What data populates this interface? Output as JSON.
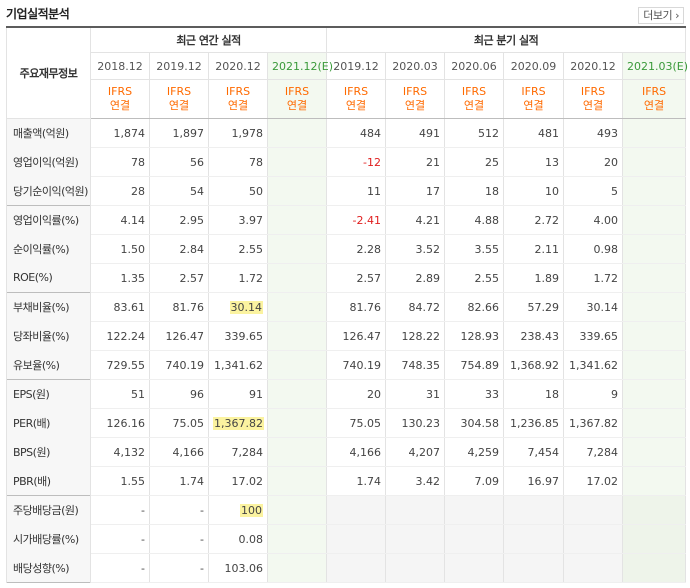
{
  "header": {
    "title": "기업실적분석",
    "more_label": "더보기"
  },
  "table": {
    "corner_label": "주요재무정보",
    "annual_group_label": "최근 연간 실적",
    "quarter_group_label": "최근 분기 실적",
    "annual_dates": [
      "2018.12",
      "2019.12",
      "2020.12",
      "2021.12(E)"
    ],
    "quarter_dates": [
      "2019.12",
      "2020.03",
      "2020.06",
      "2020.09",
      "2020.12",
      "2021.03(E)"
    ],
    "type_top": "IFRS",
    "type_bottom": "연결",
    "rows": [
      {
        "label": "매출액(억원)",
        "annual": [
          "1,874",
          "1,897",
          "1,978",
          ""
        ],
        "quarter": [
          "484",
          "491",
          "512",
          "481",
          "493",
          ""
        ]
      },
      {
        "label": "영업이익(억원)",
        "annual": [
          "78",
          "56",
          "78",
          ""
        ],
        "quarter": [
          "-12",
          "21",
          "25",
          "13",
          "20",
          ""
        ]
      },
      {
        "label": "당기순이익(억원)",
        "annual": [
          "28",
          "54",
          "50",
          ""
        ],
        "quarter": [
          "11",
          "17",
          "18",
          "10",
          "5",
          ""
        ]
      },
      {
        "label": "영업이익률(%)",
        "annual": [
          "4.14",
          "2.95",
          "3.97",
          ""
        ],
        "quarter": [
          "-2.41",
          "4.21",
          "4.88",
          "2.72",
          "4.00",
          ""
        ]
      },
      {
        "label": "순이익률(%)",
        "annual": [
          "1.50",
          "2.84",
          "2.55",
          ""
        ],
        "quarter": [
          "2.28",
          "3.52",
          "3.55",
          "2.11",
          "0.98",
          ""
        ]
      },
      {
        "label": "ROE(%)",
        "annual": [
          "1.35",
          "2.57",
          "1.72",
          ""
        ],
        "quarter": [
          "2.57",
          "2.89",
          "2.55",
          "1.89",
          "1.72",
          ""
        ]
      },
      {
        "label": "부채비율(%)",
        "annual": [
          "83.61",
          "81.76",
          "30.14",
          ""
        ],
        "quarter": [
          "81.76",
          "84.72",
          "82.66",
          "57.29",
          "30.14",
          ""
        ]
      },
      {
        "label": "당좌비율(%)",
        "annual": [
          "122.24",
          "126.47",
          "339.65",
          ""
        ],
        "quarter": [
          "126.47",
          "128.22",
          "128.93",
          "238.43",
          "339.65",
          ""
        ]
      },
      {
        "label": "유보율(%)",
        "annual": [
          "729.55",
          "740.19",
          "1,341.62",
          ""
        ],
        "quarter": [
          "740.19",
          "748.35",
          "754.89",
          "1,368.92",
          "1,341.62",
          ""
        ]
      },
      {
        "label": "EPS(원)",
        "annual": [
          "51",
          "96",
          "91",
          ""
        ],
        "quarter": [
          "20",
          "31",
          "33",
          "18",
          "9",
          ""
        ]
      },
      {
        "label": "PER(배)",
        "annual": [
          "126.16",
          "75.05",
          "1,367.82",
          ""
        ],
        "quarter": [
          "75.05",
          "130.23",
          "304.58",
          "1,236.85",
          "1,367.82",
          ""
        ]
      },
      {
        "label": "BPS(원)",
        "annual": [
          "4,132",
          "4,166",
          "7,284",
          ""
        ],
        "quarter": [
          "4,166",
          "4,207",
          "4,259",
          "7,454",
          "7,284",
          ""
        ]
      },
      {
        "label": "PBR(배)",
        "annual": [
          "1.55",
          "1.74",
          "17.02",
          ""
        ],
        "quarter": [
          "1.74",
          "3.42",
          "7.09",
          "16.97",
          "17.02",
          ""
        ]
      },
      {
        "label": "주당배당금(원)",
        "annual": [
          "-",
          "-",
          "100",
          ""
        ],
        "quarter": [
          "",
          "",
          "",
          "",
          "",
          ""
        ]
      },
      {
        "label": "시가배당률(%)",
        "annual": [
          "-",
          "-",
          "0.08",
          ""
        ],
        "quarter": [
          "",
          "",
          "",
          "",
          "",
          ""
        ]
      },
      {
        "label": "배당성향(%)",
        "annual": [
          "-",
          "-",
          "103.06",
          ""
        ],
        "quarter": [
          "",
          "",
          "",
          "",
          "",
          ""
        ]
      }
    ],
    "highlight_color": "#fbf3a0",
    "negative_color": "#e02020",
    "ifrs_color": "#ff6a00",
    "estimate_date_color": "#3a9a3a"
  }
}
